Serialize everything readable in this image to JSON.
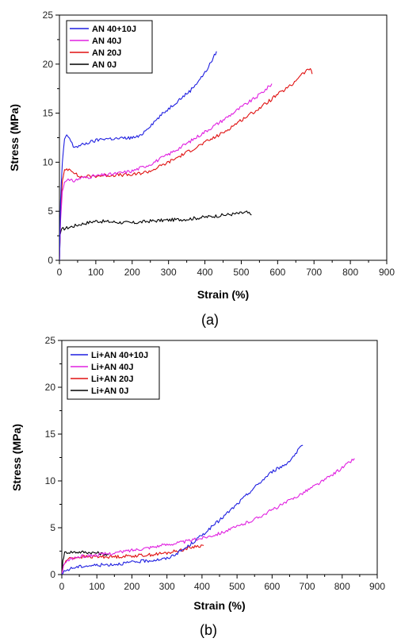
{
  "chart_data": [
    {
      "type": "line",
      "caption": "(a)",
      "xlabel": "Strain (%)",
      "ylabel": "Stress (MPa)",
      "xlim": [
        0,
        900
      ],
      "ylim": [
        0,
        25
      ],
      "xticks": [
        0,
        100,
        200,
        300,
        400,
        500,
        600,
        700,
        800,
        900
      ],
      "yticks": [
        0,
        5,
        10,
        15,
        20,
        25
      ],
      "grid": false,
      "legend": "top-left",
      "series": [
        {
          "name": "AN 40+10J",
          "color": "#1f1fe0",
          "x": [
            0,
            3,
            8,
            14,
            20,
            28,
            38,
            50,
            80,
            120,
            160,
            200,
            220,
            240,
            280,
            320,
            360,
            400,
            420,
            432
          ],
          "y": [
            0,
            6,
            10,
            12.2,
            12.8,
            12.4,
            11.6,
            11.6,
            12.0,
            12.4,
            12.4,
            12.5,
            12.6,
            13.4,
            14.8,
            16.1,
            17.3,
            19.1,
            20.4,
            21.3
          ]
        },
        {
          "name": "AN 40J",
          "color": "#e020e0",
          "x": [
            0,
            3,
            8,
            14,
            20,
            28,
            40,
            60,
            100,
            150,
            200,
            250,
            300,
            350,
            400,
            450,
            500,
            540,
            570,
            584
          ],
          "y": [
            0,
            4,
            7,
            8.0,
            8.3,
            8.1,
            8.1,
            8.4,
            8.6,
            8.8,
            9.1,
            9.8,
            10.8,
            11.9,
            13.1,
            14.3,
            15.6,
            16.6,
            17.5,
            18.0
          ]
        },
        {
          "name": "AN 20J",
          "color": "#e01010",
          "x": [
            0,
            3,
            8,
            14,
            20,
            30,
            40,
            50,
            60,
            100,
            150,
            200,
            250,
            300,
            350,
            400,
            450,
            500,
            550,
            600,
            640,
            660,
            680,
            690,
            695
          ],
          "y": [
            0,
            5,
            8,
            9.1,
            9.3,
            9.3,
            9.0,
            8.6,
            8.5,
            8.6,
            8.7,
            8.7,
            9.1,
            10.0,
            11.0,
            12.0,
            13.0,
            14.3,
            15.5,
            16.9,
            17.9,
            18.8,
            19.3,
            19.6,
            19.0
          ]
        },
        {
          "name": "AN 0J",
          "color": "#000000",
          "x": [
            0,
            2,
            5,
            10,
            20,
            40,
            60,
            100,
            150,
            200,
            250,
            300,
            350,
            400,
            450,
            500,
            515,
            528
          ],
          "y": [
            0,
            2.6,
            3.1,
            3.2,
            3.3,
            3.5,
            3.7,
            4.0,
            3.9,
            3.8,
            4.0,
            4.1,
            4.2,
            4.4,
            4.6,
            4.8,
            4.9,
            4.6
          ]
        }
      ]
    },
    {
      "type": "line",
      "caption": "(b)",
      "xlabel": "Strain (%)",
      "ylabel": "Stress (MPa)",
      "xlim": [
        0,
        900
      ],
      "ylim": [
        0,
        25
      ],
      "xticks": [
        0,
        100,
        200,
        300,
        400,
        500,
        600,
        700,
        800,
        900
      ],
      "yticks": [
        0,
        5,
        10,
        15,
        20,
        25
      ],
      "grid": false,
      "legend": "top-left",
      "series": [
        {
          "name": "Li+AN 40+10J",
          "color": "#1f1fe0",
          "x": [
            0,
            10,
            30,
            60,
            100,
            150,
            200,
            250,
            300,
            330,
            360,
            400,
            450,
            500,
            550,
            600,
            640,
            660,
            670,
            680,
            688
          ],
          "y": [
            0,
            0.4,
            0.7,
            0.9,
            1.0,
            1.1,
            1.3,
            1.5,
            1.7,
            2.3,
            3.0,
            4.2,
            5.8,
            7.5,
            9.3,
            11.0,
            11.8,
            12.6,
            13.0,
            13.6,
            13.8
          ]
        },
        {
          "name": "Li+AN 40J",
          "color": "#e020e0",
          "x": [
            0,
            5,
            20,
            50,
            100,
            150,
            200,
            250,
            300,
            350,
            400,
            450,
            500,
            550,
            600,
            650,
            700,
            750,
            800,
            835
          ],
          "y": [
            0,
            1.0,
            1.6,
            1.9,
            2.1,
            2.3,
            2.6,
            2.9,
            3.2,
            3.5,
            3.9,
            4.4,
            5.1,
            5.9,
            6.9,
            7.9,
            9.0,
            10.1,
            11.4,
            12.4
          ]
        },
        {
          "name": "Li+AN 20J",
          "color": "#e01010",
          "x": [
            0,
            5,
            15,
            30,
            60,
            100,
            150,
            200,
            250,
            300,
            350,
            380,
            405
          ],
          "y": [
            0,
            1.0,
            1.6,
            1.8,
            1.9,
            1.9,
            1.9,
            2.0,
            2.1,
            2.3,
            2.7,
            3.0,
            3.1
          ]
        },
        {
          "name": "Li+AN 0J",
          "color": "#000000",
          "x": [
            0,
            3,
            8,
            15,
            30,
            60,
            100,
            120,
            135
          ],
          "y": [
            0,
            1.5,
            2.3,
            2.4,
            2.4,
            2.4,
            2.3,
            2.2,
            2.1
          ]
        }
      ]
    }
  ]
}
